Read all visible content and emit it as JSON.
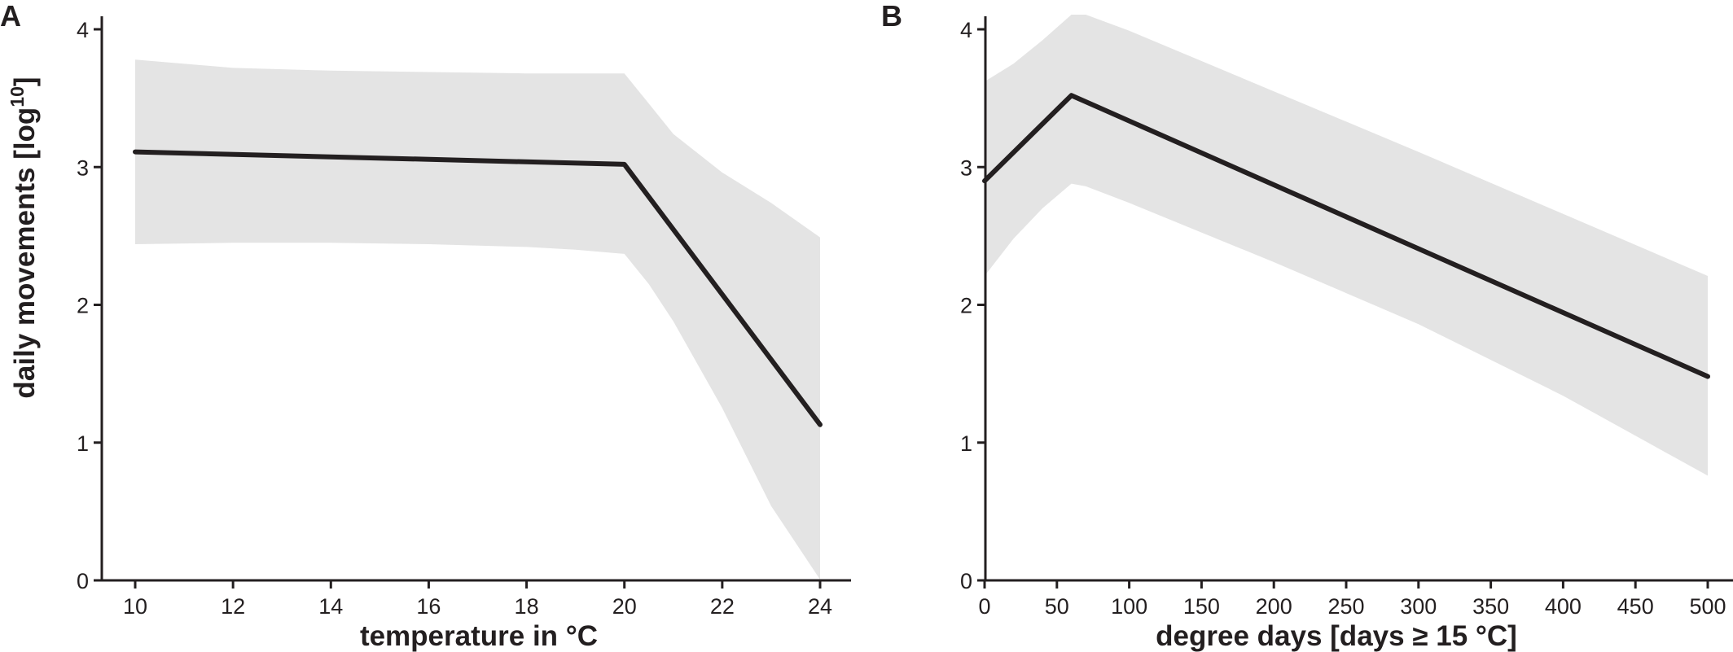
{
  "chart_data": [
    {
      "type": "line",
      "panel_label": "A",
      "xlabel": "temperature in °C",
      "ylabel": "daily movements [log",
      "ylabel_sup": "10",
      "ylabel_close": "]",
      "xlim": [
        9.3,
        24.7
      ],
      "ylim": [
        0,
        4.1
      ],
      "x_ticks": [
        10,
        12,
        14,
        16,
        18,
        20,
        22,
        24
      ],
      "y_ticks": [
        0,
        1,
        2,
        3,
        4
      ],
      "series": [
        {
          "x": [
            10,
            20,
            24
          ],
          "y": [
            3.11,
            3.02,
            1.13
          ]
        }
      ],
      "band": {
        "x": [
          10,
          12,
          14,
          16,
          18,
          19,
          20,
          20.5,
          21,
          22,
          23,
          24
        ],
        "upper": [
          3.78,
          3.72,
          3.7,
          3.69,
          3.68,
          3.68,
          3.68,
          3.46,
          3.24,
          2.96,
          2.74,
          2.49
        ],
        "lower": [
          2.44,
          2.45,
          2.45,
          2.44,
          2.42,
          2.4,
          2.37,
          2.15,
          1.88,
          1.25,
          0.54,
          -0.15
        ]
      }
    },
    {
      "type": "line",
      "panel_label": "B",
      "xlabel": "degree days [days ≥ 15 °C]",
      "xlim": [
        0,
        525
      ],
      "ylim": [
        0,
        4.1
      ],
      "x_ticks": [
        0,
        50,
        100,
        150,
        200,
        250,
        300,
        350,
        400,
        450,
        500
      ],
      "y_ticks": [
        0,
        1,
        2,
        3,
        4
      ],
      "series": [
        {
          "x": [
            0,
            60,
            500
          ],
          "y": [
            2.9,
            3.52,
            1.48
          ]
        }
      ],
      "band": {
        "x": [
          0,
          20,
          40,
          60,
          70,
          100,
          200,
          300,
          400,
          500
        ],
        "upper": [
          3.62,
          3.75,
          3.92,
          4.12,
          4.12,
          3.99,
          3.55,
          3.11,
          2.66,
          2.21
        ],
        "lower": [
          2.21,
          2.48,
          2.7,
          2.88,
          2.86,
          2.74,
          2.31,
          1.86,
          1.34,
          0.76
        ]
      }
    }
  ]
}
